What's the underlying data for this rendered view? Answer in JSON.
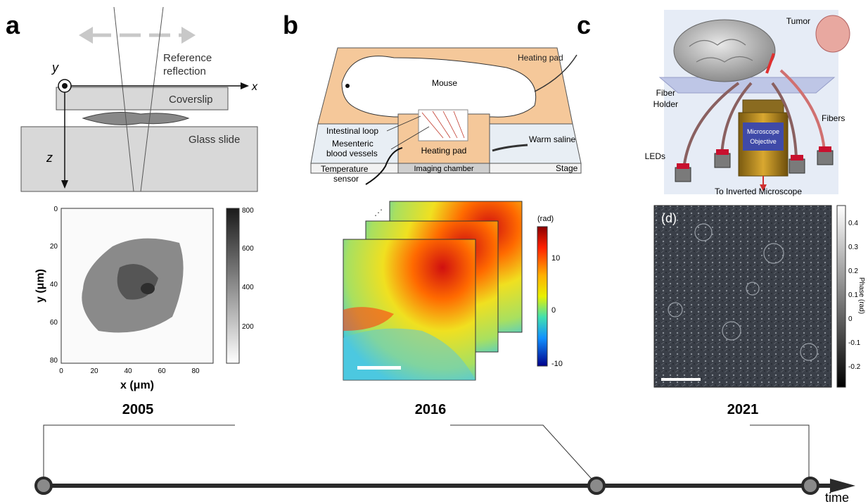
{
  "panels": {
    "a": {
      "letter": "a",
      "diagram": {
        "y_axis": "y",
        "x_axis": "x",
        "z_axis": "z",
        "reference": [
          "Reference",
          "reflection"
        ],
        "coverslip": "Coverslip",
        "glass_slide": "Glass slide"
      },
      "image": {
        "ylabel": "y (μm)",
        "xlabel": "x (μm)",
        "x_ticks": [
          "0",
          "20",
          "40",
          "60",
          "80"
        ],
        "y_ticks": [
          "0",
          "20",
          "40",
          "60",
          "80"
        ],
        "colorbar_ticks": [
          "800",
          "600",
          "400",
          "200"
        ]
      },
      "year": "2005"
    },
    "b": {
      "letter": "b",
      "diagram": {
        "heating_pad_top": "Heating pad",
        "mouse": "Mouse",
        "intestinal_loop": "Intestinal loop",
        "mesenteric": [
          "Mesenteric",
          "blood vessels"
        ],
        "heating_pad": "Heating pad",
        "warm_saline": "Warm saline",
        "temperature_sensor": [
          "Temperature",
          "sensor"
        ],
        "imaging_chamber": "Imaging chamber",
        "stage": "Stage"
      },
      "colorbar": {
        "unit": "(rad)",
        "ticks": [
          "10",
          "0",
          "-10"
        ]
      },
      "year": "2016"
    },
    "c": {
      "letter": "c",
      "diagram": {
        "tumor": "Tumor",
        "fiber_holder": [
          "Fiber",
          "Holder"
        ],
        "fibers": "Fibers",
        "leds": "LEDs",
        "objective": [
          "Microscope",
          "Objective"
        ],
        "to_inverted": "To Inverted Microscope"
      },
      "image": {
        "tag": "(d)",
        "colorbar_label": "Phase (rad)",
        "colorbar_ticks": [
          "0.4",
          "0.3",
          "0.2",
          "0.1",
          "0",
          "-0.1",
          "-0.2"
        ]
      },
      "year": "2021"
    }
  },
  "timeline": {
    "label": "time"
  },
  "colors": {
    "heating_pad": "#f5c89a",
    "line": "#2a2a2a",
    "node_fill": "#8a8a8a",
    "led_red": "#c8102e"
  }
}
